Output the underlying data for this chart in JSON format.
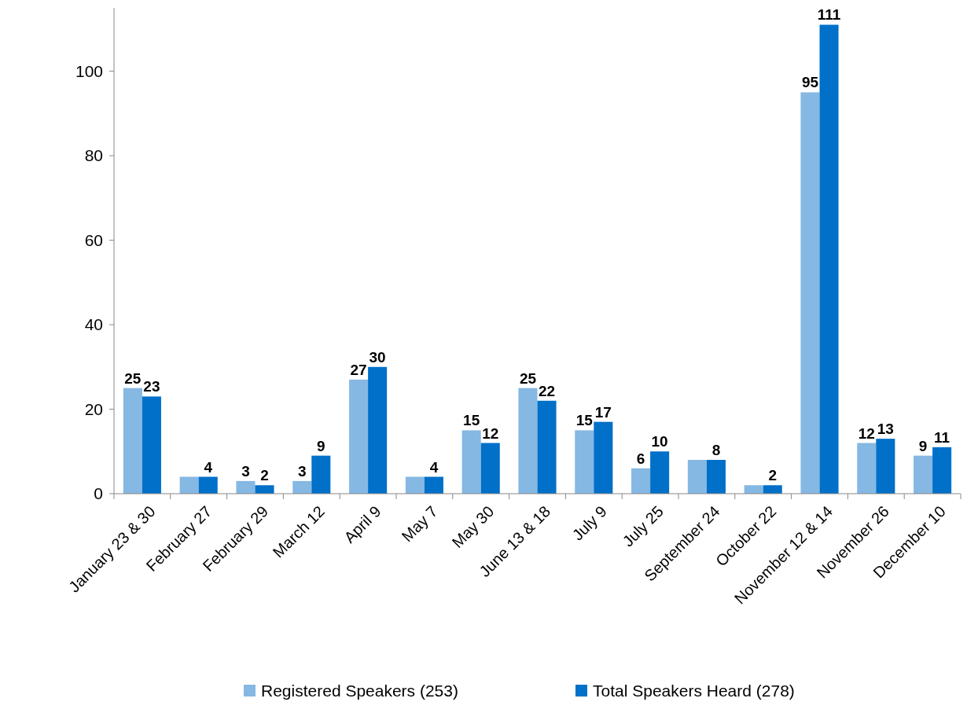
{
  "chart_data": {
    "type": "bar",
    "categories": [
      "January 23 & 30",
      "February 27",
      "February 29",
      "March 12",
      "April 9",
      "May 7",
      "May 30",
      "June 13 & 18",
      "July 9",
      "July 25",
      "September 24",
      "October 22",
      "November 12 & 14",
      "November 26",
      "December 10"
    ],
    "series": [
      {
        "name": "Registered Speakers (253)",
        "color": "#85b8e3",
        "values": [
          25,
          4,
          3,
          3,
          27,
          4,
          15,
          25,
          15,
          6,
          8,
          2,
          95,
          12,
          9
        ],
        "value_labels": [
          "25",
          null,
          "3",
          "3",
          "27",
          null,
          "15",
          "25",
          "15",
          "6",
          null,
          null,
          "95",
          "12",
          "9"
        ]
      },
      {
        "name": "Total Speakers Heard (278)",
        "color": "#0070c9",
        "values": [
          23,
          4,
          2,
          9,
          30,
          4,
          12,
          22,
          17,
          10,
          8,
          2,
          111,
          13,
          11
        ],
        "value_labels": [
          "23",
          "4",
          "2",
          "9",
          "30",
          "4",
          "12",
          "22",
          "17",
          "10",
          "8",
          "2",
          "111",
          "13",
          "11"
        ]
      }
    ],
    "ylim": [
      0,
      115
    ],
    "yticks": [
      0,
      20,
      40,
      60,
      80,
      100
    ],
    "grid": false,
    "legend": "bottom"
  }
}
